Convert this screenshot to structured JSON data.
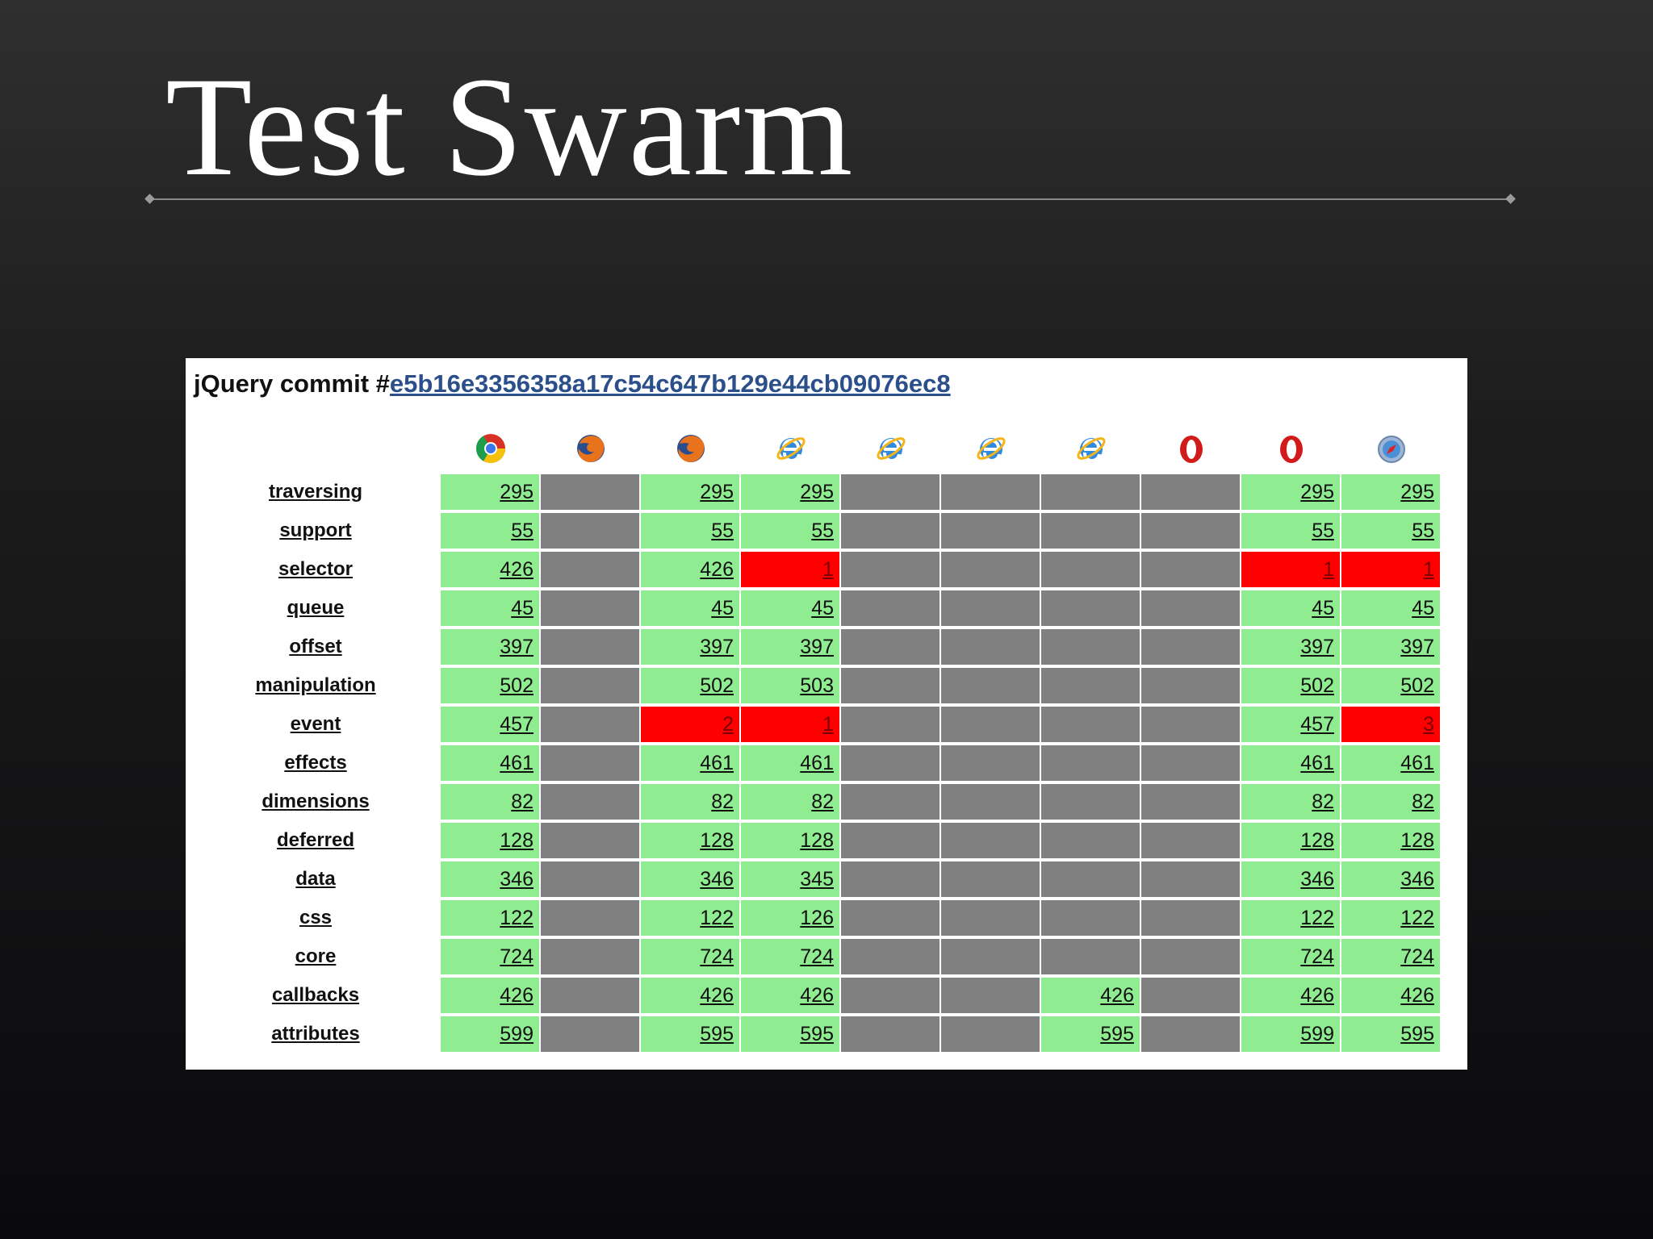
{
  "title": "Test Swarm",
  "panel": {
    "heading_prefix": "jQuery commit #",
    "commit_hash": "e5b16e3356358a17c54c647b129e44cb09076ec8"
  },
  "browsers": [
    {
      "icon": "chrome-icon"
    },
    {
      "icon": "firefox-icon"
    },
    {
      "icon": "firefox-icon"
    },
    {
      "icon": "internet-explorer-icon"
    },
    {
      "icon": "internet-explorer-icon"
    },
    {
      "icon": "internet-explorer-icon"
    },
    {
      "icon": "internet-explorer-icon"
    },
    {
      "icon": "opera-icon"
    },
    {
      "icon": "opera-icon"
    },
    {
      "icon": "safari-icon"
    }
  ],
  "colors": {
    "pass": "#90ec90",
    "fail": "#ff0000",
    "not_run": "#808080"
  },
  "results": [
    {
      "module": "traversing",
      "cells": [
        [
          "pass",
          "295"
        ],
        [
          "na",
          ""
        ],
        [
          "pass",
          "295"
        ],
        [
          "pass",
          "295"
        ],
        [
          "na",
          ""
        ],
        [
          "na",
          ""
        ],
        [
          "na",
          ""
        ],
        [
          "na",
          ""
        ],
        [
          "pass",
          "295"
        ],
        [
          "pass",
          "295"
        ]
      ]
    },
    {
      "module": "support",
      "cells": [
        [
          "pass",
          "55"
        ],
        [
          "na",
          ""
        ],
        [
          "pass",
          "55"
        ],
        [
          "pass",
          "55"
        ],
        [
          "na",
          ""
        ],
        [
          "na",
          ""
        ],
        [
          "na",
          ""
        ],
        [
          "na",
          ""
        ],
        [
          "pass",
          "55"
        ],
        [
          "pass",
          "55"
        ]
      ]
    },
    {
      "module": "selector",
      "cells": [
        [
          "pass",
          "426"
        ],
        [
          "na",
          ""
        ],
        [
          "pass",
          "426"
        ],
        [
          "fail",
          "1"
        ],
        [
          "na",
          ""
        ],
        [
          "na",
          ""
        ],
        [
          "na",
          ""
        ],
        [
          "na",
          ""
        ],
        [
          "fail",
          "1"
        ],
        [
          "fail",
          "1"
        ]
      ]
    },
    {
      "module": "queue",
      "cells": [
        [
          "pass",
          "45"
        ],
        [
          "na",
          ""
        ],
        [
          "pass",
          "45"
        ],
        [
          "pass",
          "45"
        ],
        [
          "na",
          ""
        ],
        [
          "na",
          ""
        ],
        [
          "na",
          ""
        ],
        [
          "na",
          ""
        ],
        [
          "pass",
          "45"
        ],
        [
          "pass",
          "45"
        ]
      ]
    },
    {
      "module": "offset",
      "cells": [
        [
          "pass",
          "397"
        ],
        [
          "na",
          ""
        ],
        [
          "pass",
          "397"
        ],
        [
          "pass",
          "397"
        ],
        [
          "na",
          ""
        ],
        [
          "na",
          ""
        ],
        [
          "na",
          ""
        ],
        [
          "na",
          ""
        ],
        [
          "pass",
          "397"
        ],
        [
          "pass",
          "397"
        ]
      ]
    },
    {
      "module": "manipulation",
      "cells": [
        [
          "pass",
          "502"
        ],
        [
          "na",
          ""
        ],
        [
          "pass",
          "502"
        ],
        [
          "pass",
          "503"
        ],
        [
          "na",
          ""
        ],
        [
          "na",
          ""
        ],
        [
          "na",
          ""
        ],
        [
          "na",
          ""
        ],
        [
          "pass",
          "502"
        ],
        [
          "pass",
          "502"
        ]
      ]
    },
    {
      "module": "event",
      "cells": [
        [
          "pass",
          "457"
        ],
        [
          "na",
          ""
        ],
        [
          "fail",
          "2"
        ],
        [
          "fail",
          "1"
        ],
        [
          "na",
          ""
        ],
        [
          "na",
          ""
        ],
        [
          "na",
          ""
        ],
        [
          "na",
          ""
        ],
        [
          "pass",
          "457"
        ],
        [
          "fail",
          "3"
        ]
      ]
    },
    {
      "module": "effects",
      "cells": [
        [
          "pass",
          "461"
        ],
        [
          "na",
          ""
        ],
        [
          "pass",
          "461"
        ],
        [
          "pass",
          "461"
        ],
        [
          "na",
          ""
        ],
        [
          "na",
          ""
        ],
        [
          "na",
          ""
        ],
        [
          "na",
          ""
        ],
        [
          "pass",
          "461"
        ],
        [
          "pass",
          "461"
        ]
      ]
    },
    {
      "module": "dimensions",
      "cells": [
        [
          "pass",
          "82"
        ],
        [
          "na",
          ""
        ],
        [
          "pass",
          "82"
        ],
        [
          "pass",
          "82"
        ],
        [
          "na",
          ""
        ],
        [
          "na",
          ""
        ],
        [
          "na",
          ""
        ],
        [
          "na",
          ""
        ],
        [
          "pass",
          "82"
        ],
        [
          "pass",
          "82"
        ]
      ]
    },
    {
      "module": "deferred",
      "cells": [
        [
          "pass",
          "128"
        ],
        [
          "na",
          ""
        ],
        [
          "pass",
          "128"
        ],
        [
          "pass",
          "128"
        ],
        [
          "na",
          ""
        ],
        [
          "na",
          ""
        ],
        [
          "na",
          ""
        ],
        [
          "na",
          ""
        ],
        [
          "pass",
          "128"
        ],
        [
          "pass",
          "128"
        ]
      ]
    },
    {
      "module": "data",
      "cells": [
        [
          "pass",
          "346"
        ],
        [
          "na",
          ""
        ],
        [
          "pass",
          "346"
        ],
        [
          "pass",
          "345"
        ],
        [
          "na",
          ""
        ],
        [
          "na",
          ""
        ],
        [
          "na",
          ""
        ],
        [
          "na",
          ""
        ],
        [
          "pass",
          "346"
        ],
        [
          "pass",
          "346"
        ]
      ]
    },
    {
      "module": "css",
      "cells": [
        [
          "pass",
          "122"
        ],
        [
          "na",
          ""
        ],
        [
          "pass",
          "122"
        ],
        [
          "pass",
          "126"
        ],
        [
          "na",
          ""
        ],
        [
          "na",
          ""
        ],
        [
          "na",
          ""
        ],
        [
          "na",
          ""
        ],
        [
          "pass",
          "122"
        ],
        [
          "pass",
          "122"
        ]
      ]
    },
    {
      "module": "core",
      "cells": [
        [
          "pass",
          "724"
        ],
        [
          "na",
          ""
        ],
        [
          "pass",
          "724"
        ],
        [
          "pass",
          "724"
        ],
        [
          "na",
          ""
        ],
        [
          "na",
          ""
        ],
        [
          "na",
          ""
        ],
        [
          "na",
          ""
        ],
        [
          "pass",
          "724"
        ],
        [
          "pass",
          "724"
        ]
      ]
    },
    {
      "module": "callbacks",
      "cells": [
        [
          "pass",
          "426"
        ],
        [
          "na",
          ""
        ],
        [
          "pass",
          "426"
        ],
        [
          "pass",
          "426"
        ],
        [
          "na",
          ""
        ],
        [
          "na",
          ""
        ],
        [
          "pass",
          "426"
        ],
        [
          "na",
          ""
        ],
        [
          "pass",
          "426"
        ],
        [
          "pass",
          "426"
        ]
      ]
    },
    {
      "module": "attributes",
      "cells": [
        [
          "pass",
          "599"
        ],
        [
          "na",
          ""
        ],
        [
          "pass",
          "595"
        ],
        [
          "pass",
          "595"
        ],
        [
          "na",
          ""
        ],
        [
          "na",
          ""
        ],
        [
          "pass",
          "595"
        ],
        [
          "na",
          ""
        ],
        [
          "pass",
          "599"
        ],
        [
          "pass",
          "595"
        ]
      ]
    }
  ]
}
